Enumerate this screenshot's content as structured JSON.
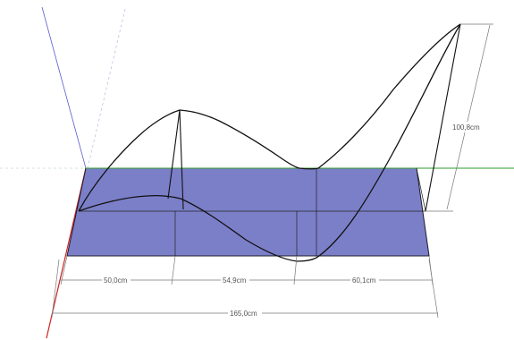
{
  "scene": {
    "colors": {
      "background": "#ffffff",
      "face_fill": "#7b7fc8",
      "face_edge": "#000000",
      "axis_red": "#cc2222",
      "axis_green": "#2e9b2e",
      "axis_blue": "#5555cc",
      "dimension": "#777777",
      "curve": "#000000"
    },
    "dimensions": {
      "seg1": "50,0cm",
      "seg2": "54,9cm",
      "seg3": "60,1cm",
      "total": "165,0cm",
      "height": "100,8cm"
    }
  }
}
